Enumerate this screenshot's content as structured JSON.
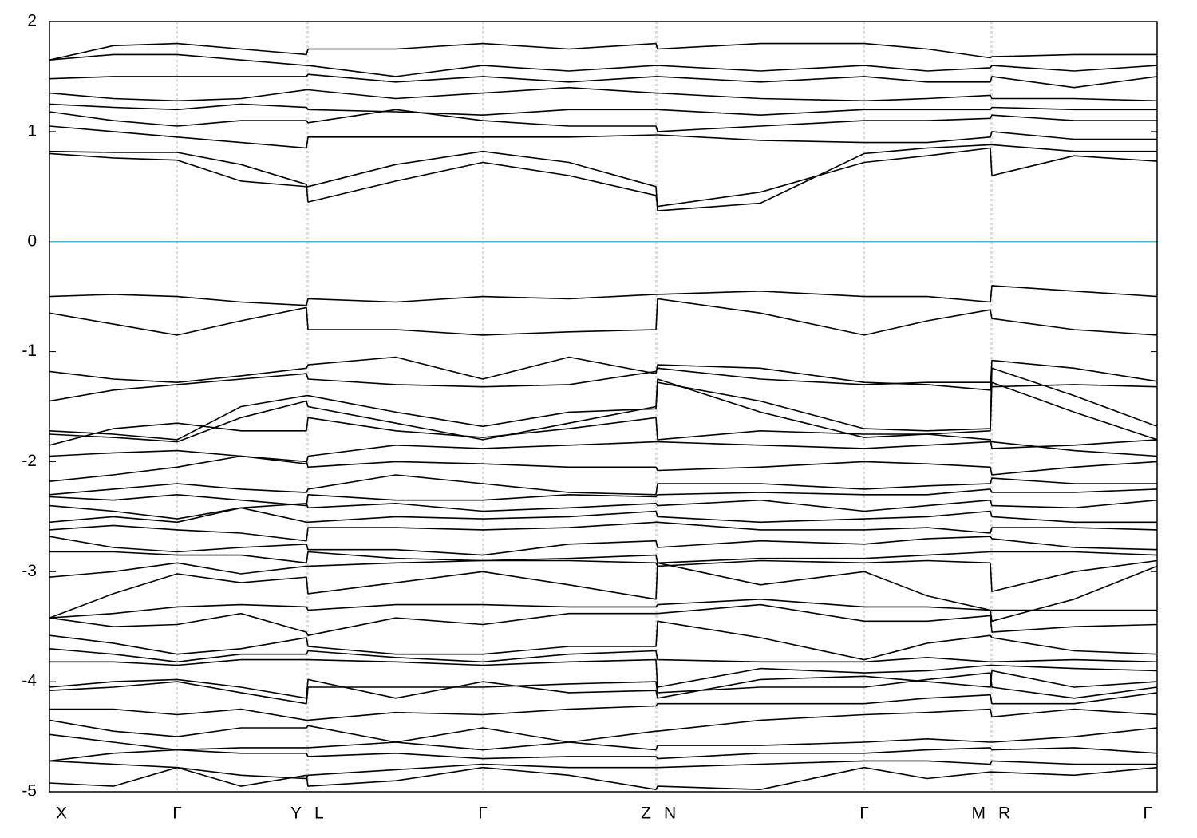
{
  "chart_data": {
    "type": "line",
    "x": [
      0,
      80,
      160,
      240,
      322,
      324,
      434,
      543,
      651,
      760,
      762,
      891,
      1021,
      1100,
      1179,
      1181,
      1284,
      1388
    ],
    "xlim": [
      0,
      1388
    ],
    "xticks": [
      {
        "value": 0,
        "label": "X"
      },
      {
        "value": 160,
        "label": "Γ"
      },
      {
        "value": 322,
        "label": "Y"
      },
      {
        "value": 324,
        "label": "L"
      },
      {
        "value": 543,
        "label": "Γ"
      },
      {
        "value": 760,
        "label": "Z"
      },
      {
        "value": 762,
        "label": "N"
      },
      {
        "value": 1021,
        "label": "Γ"
      },
      {
        "value": 1179,
        "label": "M"
      },
      {
        "value": 1181,
        "label": "R"
      },
      {
        "value": 1388,
        "label": "Γ"
      }
    ],
    "ylim": [
      -5,
      2
    ],
    "yticks": [
      -5,
      -4,
      -3,
      -2,
      -1,
      0,
      1,
      2
    ],
    "grid": "x",
    "color": "#000000",
    "reference_line": {
      "value": 0,
      "color": "#5ab4c8"
    },
    "series": [
      {
        "values": [
          0.82,
          0.81,
          0.81,
          0.7,
          0.52,
          0.36,
          0.55,
          0.72,
          0.6,
          0.42,
          0.32,
          0.45,
          0.72,
          0.78,
          0.85,
          0.6,
          0.78,
          0.73
        ]
      },
      {
        "values": [
          0.8,
          0.76,
          0.74,
          0.55,
          0.5,
          0.5,
          0.7,
          0.82,
          0.72,
          0.5,
          0.28,
          0.35,
          0.8,
          0.85,
          0.88,
          0.88,
          0.82,
          0.82
        ]
      },
      {
        "values": [
          1.05,
          1.0,
          0.95,
          0.9,
          0.85,
          0.95,
          0.95,
          0.95,
          0.95,
          0.97,
          0.97,
          0.92,
          0.9,
          0.9,
          0.95,
          1.0,
          0.93,
          0.93
        ]
      },
      {
        "values": [
          1.18,
          1.1,
          1.05,
          1.1,
          1.1,
          1.08,
          1.2,
          1.1,
          1.05,
          1.05,
          1.0,
          1.05,
          1.1,
          1.1,
          1.12,
          1.15,
          1.1,
          1.1
        ]
      },
      {
        "values": [
          1.25,
          1.22,
          1.2,
          1.25,
          1.22,
          1.2,
          1.18,
          1.15,
          1.2,
          1.2,
          1.2,
          1.15,
          1.2,
          1.2,
          1.2,
          1.22,
          1.2,
          1.2
        ]
      },
      {
        "values": [
          1.35,
          1.3,
          1.28,
          1.3,
          1.38,
          1.38,
          1.3,
          1.35,
          1.4,
          1.35,
          1.35,
          1.3,
          1.28,
          1.3,
          1.33,
          1.3,
          1.3,
          1.28
        ]
      },
      {
        "values": [
          1.48,
          1.5,
          1.5,
          1.5,
          1.5,
          1.52,
          1.45,
          1.5,
          1.45,
          1.5,
          1.5,
          1.45,
          1.5,
          1.45,
          1.45,
          1.5,
          1.4,
          1.5
        ]
      },
      {
        "values": [
          1.65,
          1.7,
          1.7,
          1.65,
          1.6,
          1.6,
          1.5,
          1.6,
          1.55,
          1.6,
          1.6,
          1.55,
          1.6,
          1.55,
          1.58,
          1.6,
          1.55,
          1.6
        ]
      },
      {
        "values": [
          1.65,
          1.78,
          1.8,
          1.75,
          1.7,
          1.75,
          1.75,
          1.8,
          1.75,
          1.8,
          1.75,
          1.8,
          1.8,
          1.75,
          1.67,
          1.68,
          1.7,
          1.7
        ]
      },
      {
        "values": [
          -0.5,
          -0.48,
          -0.5,
          -0.55,
          -0.58,
          -0.52,
          -0.55,
          -0.5,
          -0.52,
          -0.48,
          -0.48,
          -0.45,
          -0.5,
          -0.5,
          -0.55,
          -0.4,
          -0.45,
          -0.5
        ]
      },
      {
        "values": [
          -0.65,
          -0.75,
          -0.85,
          -0.72,
          -0.6,
          -0.8,
          -0.8,
          -0.85,
          -0.82,
          -0.8,
          -0.52,
          -0.65,
          -0.85,
          -0.72,
          -0.62,
          -0.7,
          -0.8,
          -0.85
        ]
      },
      {
        "values": [
          -1.18,
          -1.25,
          -1.28,
          -1.22,
          -1.15,
          -1.12,
          -1.05,
          -1.25,
          -1.05,
          -1.2,
          -1.12,
          -1.15,
          -1.28,
          -1.3,
          -1.35,
          -1.08,
          -1.15,
          -1.27
        ]
      },
      {
        "values": [
          -1.45,
          -1.35,
          -1.3,
          -1.25,
          -1.2,
          -1.25,
          -1.3,
          -1.32,
          -1.3,
          -1.18,
          -1.15,
          -1.25,
          -1.3,
          -1.28,
          -1.28,
          -1.32,
          -1.3,
          -1.32
        ]
      },
      {
        "values": [
          -1.72,
          -1.75,
          -1.8,
          -1.5,
          -1.4,
          -1.4,
          -1.55,
          -1.68,
          -1.55,
          -1.52,
          -1.28,
          -1.45,
          -1.7,
          -1.72,
          -1.7,
          -1.15,
          -1.4,
          -1.68
        ]
      },
      {
        "values": [
          -1.75,
          -1.78,
          -1.82,
          -1.6,
          -1.45,
          -1.5,
          -1.65,
          -1.8,
          -1.65,
          -1.5,
          -1.25,
          -1.55,
          -1.78,
          -1.75,
          -1.72,
          -1.28,
          -1.55,
          -1.8
        ]
      },
      {
        "values": [
          -1.85,
          -1.7,
          -1.65,
          -1.72,
          -1.72,
          -1.6,
          -1.72,
          -1.78,
          -1.7,
          -1.6,
          -1.8,
          -1.72,
          -1.75,
          -1.75,
          -1.8,
          -1.88,
          -1.85,
          -1.8
        ]
      },
      {
        "values": [
          -1.95,
          -1.92,
          -1.9,
          -1.95,
          -2.02,
          -1.95,
          -1.85,
          -1.88,
          -1.85,
          -1.82,
          -1.82,
          -1.85,
          -1.88,
          -1.85,
          -1.82,
          -1.82,
          -1.9,
          -1.95
        ]
      },
      {
        "values": [
          -2.18,
          -2.12,
          -2.05,
          -1.95,
          -2.0,
          -2.05,
          -2.0,
          -2.02,
          -2.05,
          -2.05,
          -2.08,
          -2.05,
          -2.0,
          -2.02,
          -2.05,
          -2.12,
          -2.05,
          -2.0
        ]
      },
      {
        "values": [
          -2.3,
          -2.25,
          -2.2,
          -2.25,
          -2.28,
          -2.25,
          -2.12,
          -2.2,
          -2.28,
          -2.3,
          -2.2,
          -2.2,
          -2.25,
          -2.22,
          -2.2,
          -2.15,
          -2.2,
          -2.2
        ]
      },
      {
        "values": [
          -2.32,
          -2.35,
          -2.3,
          -2.35,
          -2.4,
          -2.3,
          -2.35,
          -2.35,
          -2.3,
          -2.32,
          -2.3,
          -2.28,
          -2.3,
          -2.3,
          -2.25,
          -2.28,
          -2.28,
          -2.25
        ]
      },
      {
        "values": [
          -2.4,
          -2.45,
          -2.52,
          -2.42,
          -2.38,
          -2.42,
          -2.38,
          -2.45,
          -2.42,
          -2.38,
          -2.4,
          -2.35,
          -2.45,
          -2.4,
          -2.35,
          -2.4,
          -2.42,
          -2.35
        ]
      },
      {
        "values": [
          -2.55,
          -2.5,
          -2.55,
          -2.42,
          -2.55,
          -2.55,
          -2.5,
          -2.52,
          -2.5,
          -2.45,
          -2.5,
          -2.55,
          -2.52,
          -2.5,
          -2.45,
          -2.5,
          -2.55,
          -2.55
        ]
      },
      {
        "values": [
          -2.62,
          -2.58,
          -2.62,
          -2.65,
          -2.72,
          -2.6,
          -2.6,
          -2.62,
          -2.6,
          -2.55,
          -2.55,
          -2.62,
          -2.62,
          -2.6,
          -2.65,
          -2.6,
          -2.6,
          -2.62
        ]
      },
      {
        "values": [
          -2.68,
          -2.78,
          -2.82,
          -2.78,
          -2.75,
          -2.8,
          -2.8,
          -2.85,
          -2.75,
          -2.72,
          -2.78,
          -2.72,
          -2.75,
          -2.7,
          -2.68,
          -2.7,
          -2.78,
          -2.8
        ]
      },
      {
        "values": [
          -2.82,
          -2.82,
          -2.85,
          -2.85,
          -2.92,
          -2.82,
          -2.88,
          -2.9,
          -2.88,
          -2.85,
          -2.92,
          -2.88,
          -2.88,
          -2.85,
          -2.82,
          -2.82,
          -2.82,
          -2.85
        ]
      },
      {
        "values": [
          -3.05,
          -3.0,
          -2.92,
          -3.02,
          -2.95,
          -2.95,
          -2.92,
          -2.9,
          -2.9,
          -2.92,
          -2.95,
          -2.9,
          -2.92,
          -2.9,
          -2.92,
          -3.18,
          -3.0,
          -2.9
        ]
      },
      {
        "values": [
          -3.42,
          -3.2,
          -3.02,
          -3.1,
          -3.05,
          -3.2,
          -3.1,
          -3.0,
          -3.12,
          -3.25,
          -2.92,
          -3.12,
          -3.0,
          -3.22,
          -3.35,
          -3.45,
          -3.25,
          -2.95
        ]
      },
      {
        "values": [
          -3.42,
          -3.38,
          -3.32,
          -3.3,
          -3.32,
          -3.35,
          -3.3,
          -3.3,
          -3.32,
          -3.32,
          -3.3,
          -3.25,
          -3.32,
          -3.32,
          -3.35,
          -3.35,
          -3.35,
          -3.35
        ]
      },
      {
        "values": [
          -3.42,
          -3.5,
          -3.48,
          -3.38,
          -3.55,
          -3.58,
          -3.42,
          -3.48,
          -3.38,
          -3.38,
          -3.38,
          -3.3,
          -3.45,
          -3.45,
          -3.4,
          -3.55,
          -3.5,
          -3.48
        ]
      },
      {
        "values": [
          -3.58,
          -3.65,
          -3.75,
          -3.7,
          -3.6,
          -3.68,
          -3.75,
          -3.75,
          -3.68,
          -3.68,
          -3.45,
          -3.6,
          -3.8,
          -3.65,
          -3.58,
          -3.6,
          -3.72,
          -3.75
        ]
      },
      {
        "values": [
          -3.7,
          -3.75,
          -3.82,
          -3.75,
          -3.75,
          -3.72,
          -3.78,
          -3.82,
          -3.75,
          -3.72,
          -3.8,
          -3.82,
          -3.82,
          -3.78,
          -3.82,
          -3.82,
          -3.8,
          -3.82
        ]
      },
      {
        "values": [
          -3.82,
          -3.82,
          -3.85,
          -3.8,
          -3.8,
          -3.8,
          -3.82,
          -3.85,
          -3.82,
          -3.8,
          -4.05,
          -3.88,
          -3.92,
          -3.9,
          -3.85,
          -3.85,
          -3.88,
          -3.9
        ]
      },
      {
        "values": [
          -4.05,
          -4.0,
          -3.98,
          -4.05,
          -4.15,
          -3.98,
          -4.15,
          -4.0,
          -4.1,
          -4.08,
          -4.15,
          -3.98,
          -3.95,
          -4.0,
          -4.05,
          -3.9,
          -4.05,
          -4.0
        ]
      },
      {
        "values": [
          -4.08,
          -4.05,
          -4.0,
          -4.1,
          -4.2,
          -4.05,
          -4.05,
          -4.05,
          -4.02,
          -4.0,
          -4.1,
          -4.05,
          -4.05,
          -3.98,
          -3.92,
          -4.05,
          -4.15,
          -4.05
        ]
      },
      {
        "values": [
          -4.25,
          -4.25,
          -4.3,
          -4.25,
          -4.35,
          -4.35,
          -4.28,
          -4.3,
          -4.25,
          -4.22,
          -4.2,
          -4.2,
          -4.2,
          -4.15,
          -4.12,
          -4.2,
          -4.2,
          -4.1
        ]
      },
      {
        "values": [
          -4.35,
          -4.45,
          -4.5,
          -4.42,
          -4.42,
          -4.4,
          -4.55,
          -4.42,
          -4.55,
          -4.45,
          -4.45,
          -4.35,
          -4.3,
          -4.28,
          -4.25,
          -4.32,
          -4.25,
          -4.3
        ]
      },
      {
        "values": [
          -4.48,
          -4.55,
          -4.62,
          -4.6,
          -4.6,
          -4.6,
          -4.55,
          -4.62,
          -4.55,
          -4.62,
          -4.58,
          -4.58,
          -4.55,
          -4.52,
          -4.55,
          -4.55,
          -4.5,
          -4.42
        ]
      },
      {
        "values": [
          -4.72,
          -4.65,
          -4.62,
          -4.65,
          -4.65,
          -4.68,
          -4.65,
          -4.7,
          -4.68,
          -4.68,
          -4.7,
          -4.65,
          -4.65,
          -4.62,
          -4.6,
          -4.62,
          -4.6,
          -4.65
        ]
      },
      {
        "values": [
          -4.72,
          -4.75,
          -4.78,
          -4.85,
          -4.88,
          -4.85,
          -4.8,
          -4.75,
          -4.78,
          -4.78,
          -4.78,
          -4.75,
          -4.72,
          -4.72,
          -4.75,
          -4.72,
          -4.75,
          -4.75
        ]
      },
      {
        "values": [
          -4.92,
          -4.95,
          -4.78,
          -4.95,
          -4.85,
          -4.95,
          -4.9,
          -4.78,
          -4.85,
          -4.98,
          -4.95,
          -4.98,
          -4.78,
          -4.88,
          -4.82,
          -4.82,
          -4.85,
          -4.78
        ]
      }
    ]
  }
}
